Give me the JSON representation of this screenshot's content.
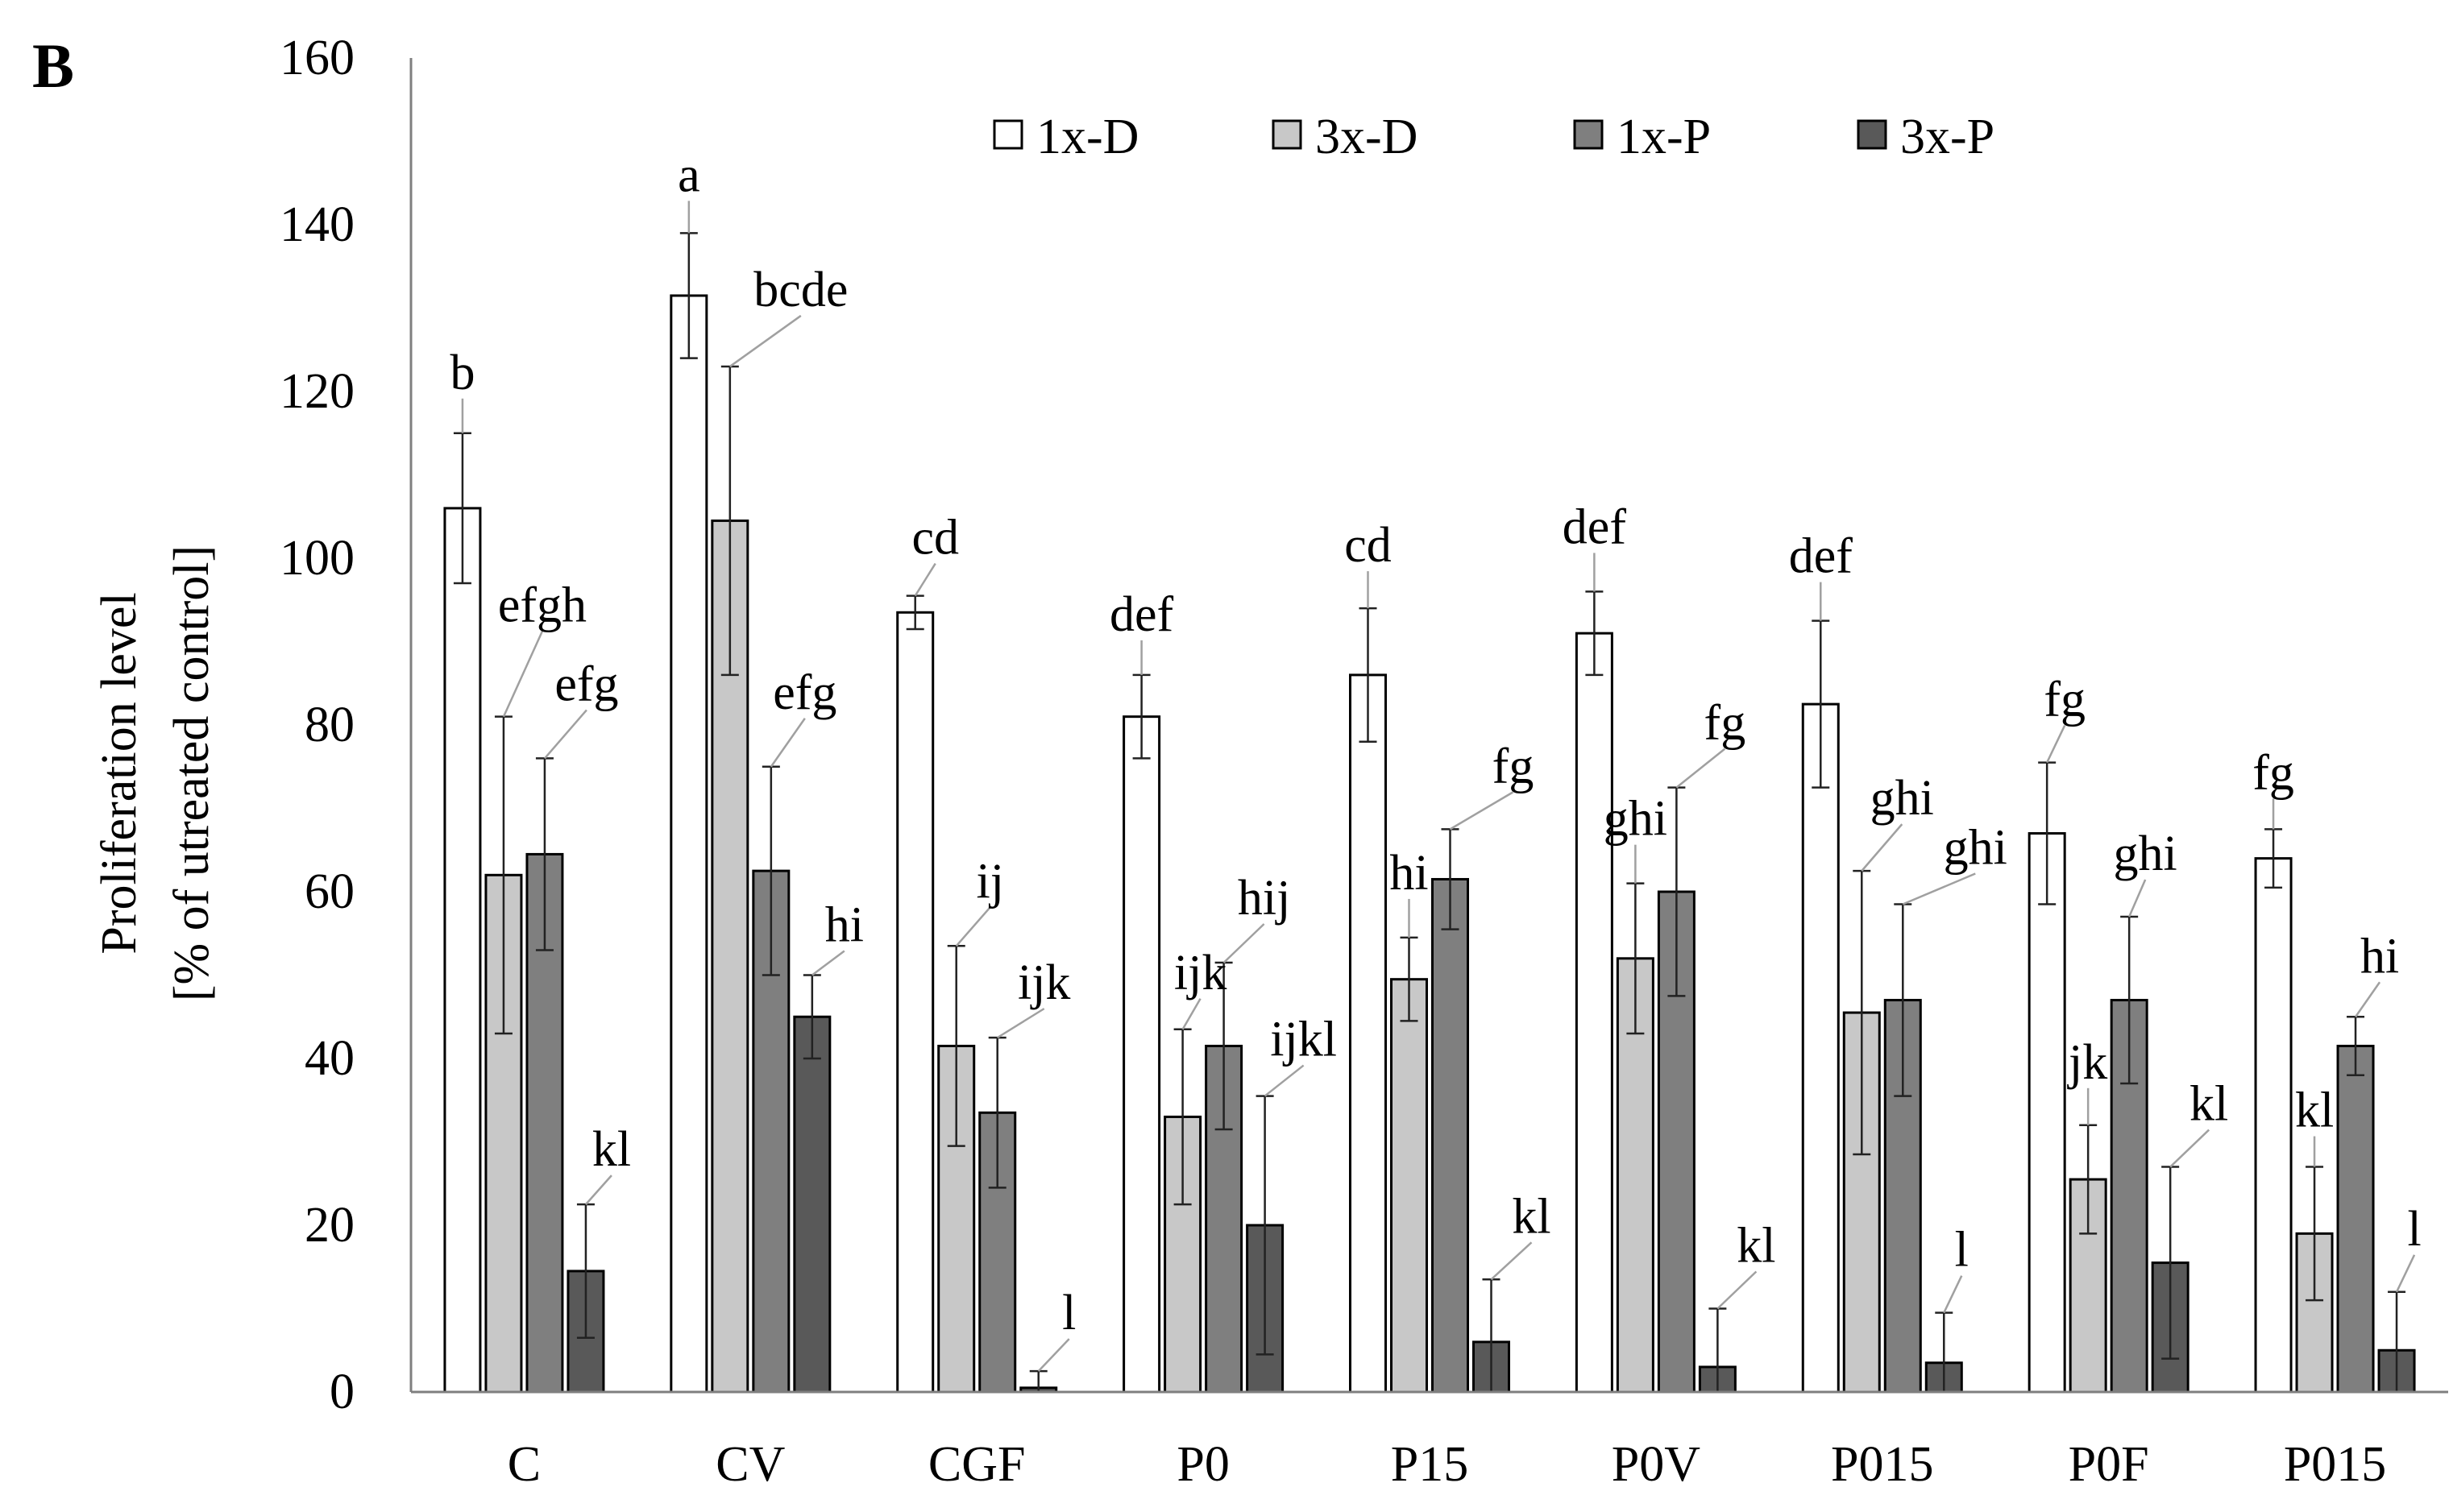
{
  "chart_data": {
    "type": "bar",
    "panel_label": "B",
    "ylabel_lines": [
      "Proliferation level",
      "[% of utreated control]"
    ],
    "xlabel": "",
    "ylim": [
      0,
      160
    ],
    "yticks": [
      0,
      20,
      40,
      60,
      80,
      100,
      120,
      140,
      160
    ],
    "grid": false,
    "legend_position": "top",
    "categories": [
      "C",
      "CV",
      "CGF",
      "P0",
      "P15",
      "P0V",
      "P015",
      "P0F",
      "P015"
    ],
    "series": [
      {
        "name": "1x-D",
        "color": "#ffffff",
        "values": [
          106,
          131.5,
          93.5,
          81,
          86,
          91,
          82.5,
          67,
          64
        ],
        "errors": [
          9,
          7.5,
          2,
          5,
          8,
          5,
          10,
          8.5,
          3.5
        ],
        "letters": [
          "b",
          "a",
          "cd",
          "def",
          "cd",
          "def",
          "def",
          "fg",
          "fg"
        ]
      },
      {
        "name": "3x-D",
        "color": "#c8c8c8",
        "values": [
          62,
          104.5,
          41.5,
          33,
          49.5,
          52,
          45.5,
          25.5,
          19
        ],
        "errors": [
          19,
          18.5,
          12,
          10.5,
          5,
          9,
          17,
          6.5,
          8
        ],
        "letters": [
          "efgh",
          "bcde",
          "ij",
          "ijk",
          "hi",
          "ghi",
          "ghi",
          "jk",
          "kl"
        ]
      },
      {
        "name": "1x-P",
        "color": "#7f7f7f",
        "values": [
          64.5,
          62.5,
          33.5,
          41.5,
          61.5,
          60,
          47,
          47,
          41.5
        ],
        "errors": [
          11.5,
          12.5,
          9,
          10,
          6,
          12.5,
          11.5,
          10,
          3.5
        ],
        "letters": [
          "efg",
          "efg",
          "ijk",
          "hij",
          "fg",
          "fg",
          "ghi",
          "ghi",
          "hi"
        ]
      },
      {
        "name": "3x-P",
        "color": "#595959",
        "values": [
          14.5,
          45,
          0.5,
          20,
          6,
          3,
          3.5,
          15.5,
          5
        ],
        "errors": [
          8,
          5,
          2,
          15.5,
          7.5,
          7,
          6,
          11.5,
          7
        ],
        "letters": [
          "kl",
          "hi",
          "l",
          "ijkl",
          "kl",
          "kl",
          "l",
          "kl",
          "l"
        ]
      }
    ]
  }
}
